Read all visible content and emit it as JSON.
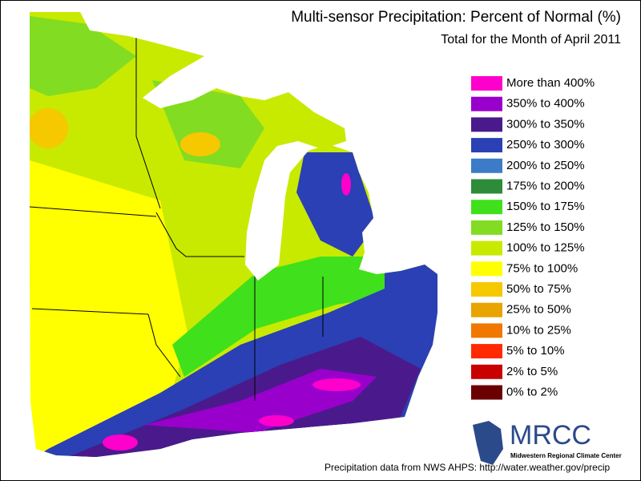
{
  "header": {
    "title": "Multi-sensor Precipitation: Percent of Normal (%)",
    "subtitle": "Total for the Month of April 2011"
  },
  "legend": {
    "items": [
      {
        "label": "More than 400%",
        "color": "#ff00cc"
      },
      {
        "label": "350% to 400%",
        "color": "#9a00cc"
      },
      {
        "label": "300% to 350%",
        "color": "#4a1a8c"
      },
      {
        "label": "250% to 300%",
        "color": "#2a40b4"
      },
      {
        "label": "200% to 250%",
        "color": "#3c7cc6"
      },
      {
        "label": "175% to 200%",
        "color": "#2e8b3a"
      },
      {
        "label": "150% to 175%",
        "color": "#40e01c"
      },
      {
        "label": "125% to 150%",
        "color": "#82dc22"
      },
      {
        "label": "100% to 125%",
        "color": "#c8ea00"
      },
      {
        "label": "75% to 100%",
        "color": "#ffff00"
      },
      {
        "label": "50% to 75%",
        "color": "#f6c800"
      },
      {
        "label": "25% to 50%",
        "color": "#e8a400"
      },
      {
        "label": "10% to 25%",
        "color": "#f07800"
      },
      {
        "label": "5% to 10%",
        "color": "#ff2a00"
      },
      {
        "label": "2% to 5%",
        "color": "#c80000"
      },
      {
        "label": "0% to 2%",
        "color": "#6a0000"
      }
    ]
  },
  "logo": {
    "name": "MRCC",
    "full_name": "Midwestern Regional Climate Center"
  },
  "footer": {
    "credit": "Precipitation data from NWS AHPS:  http://water.weather.gov/precip"
  }
}
